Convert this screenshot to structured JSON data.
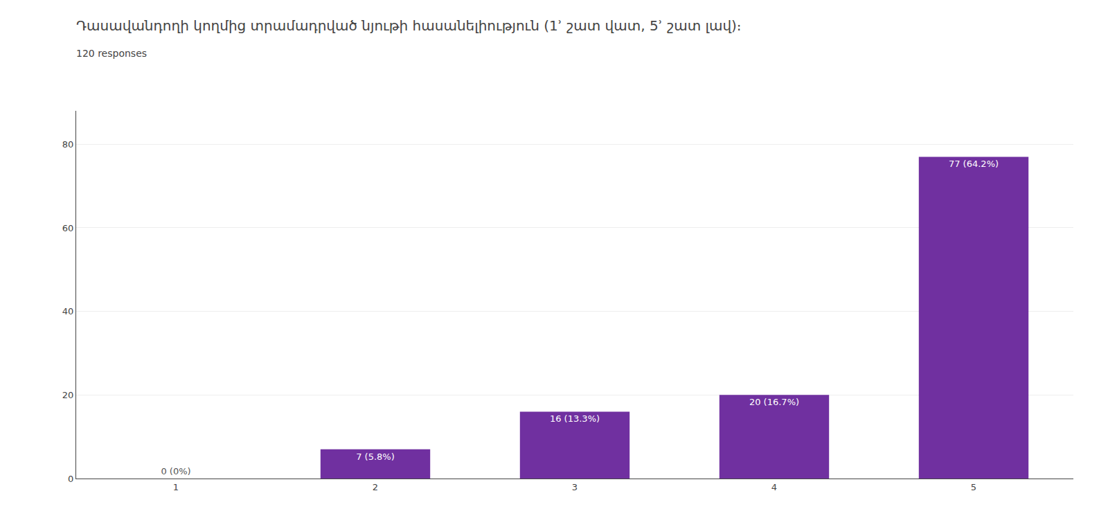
{
  "chart_data": {
    "type": "bar",
    "title": "Դասավանդողի կողմից տրամադրված նյութի հասանելիություն (1ʾ շատ վատ, 5ʾ շատ լավ)։   ",
    "subtitle": "120 responses",
    "categories": [
      1,
      2,
      3,
      4,
      5
    ],
    "values": [
      0,
      7,
      16,
      20,
      77
    ],
    "value_labels": [
      "0 (0%)",
      "7 (5.8%)",
      "16 (13.3%)",
      "20 (16.7%)",
      "77 (64.2%)"
    ],
    "data_labels": true,
    "color": "#7030A0",
    "ylim": [
      0,
      88
    ],
    "yticks": [
      0,
      20,
      40,
      60,
      80
    ],
    "grid": true
  }
}
